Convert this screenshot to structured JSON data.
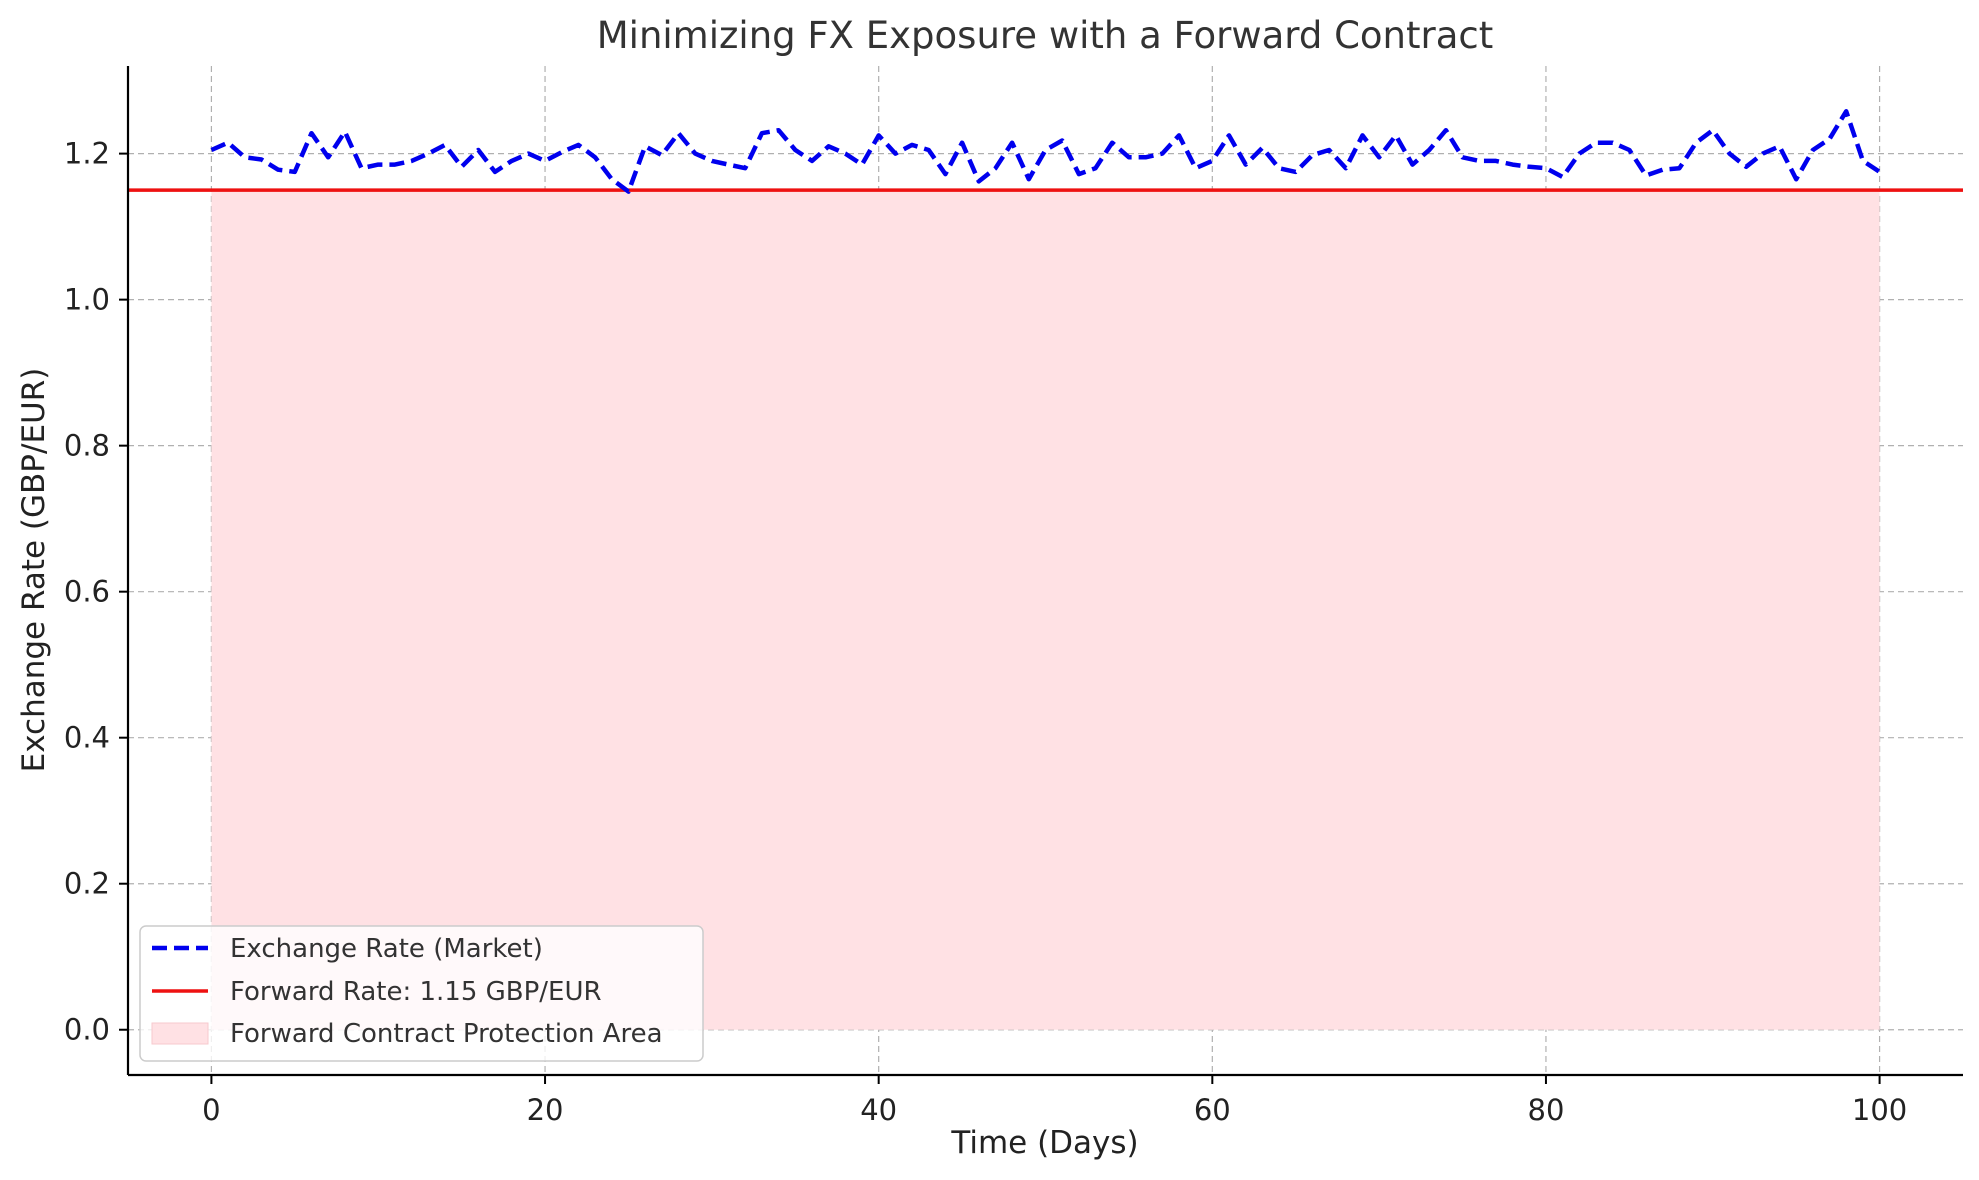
{
  "chart_data": {
    "type": "line",
    "title": "Minimizing FX Exposure with a Forward Contract",
    "xlabel": "Time (Days)",
    "ylabel": "Exchange Rate (GBP/EUR)",
    "xlim": [
      -5,
      105
    ],
    "ylim": [
      -0.062,
      1.32
    ],
    "xticks": [
      0,
      20,
      40,
      60,
      80,
      100
    ],
    "xtick_labels": [
      "0",
      "20",
      "40",
      "60",
      "80",
      "100"
    ],
    "yticks": [
      0.0,
      0.2,
      0.4,
      0.6,
      0.8,
      1.0,
      1.2
    ],
    "ytick_labels": [
      "0.0",
      "0.2",
      "0.4",
      "0.6",
      "0.8",
      "1.0",
      "1.2"
    ],
    "grid": true,
    "legend_position": "lower-left",
    "series": [
      {
        "name": "Exchange Rate (Market)",
        "style": "dashed",
        "color": "#0000ee",
        "x": [
          0,
          1,
          2,
          3,
          4,
          5,
          6,
          7,
          8,
          9,
          10,
          11,
          12,
          13,
          14,
          15,
          16,
          17,
          18,
          19,
          20,
          21,
          22,
          23,
          24,
          25,
          26,
          27,
          28,
          29,
          30,
          31,
          32,
          33,
          34,
          35,
          36,
          37,
          38,
          39,
          40,
          41,
          42,
          43,
          44,
          45,
          46,
          47,
          48,
          49,
          50,
          51,
          52,
          53,
          54,
          55,
          56,
          57,
          58,
          59,
          60,
          61,
          62,
          63,
          64,
          65,
          66,
          67,
          68,
          69,
          70,
          71,
          72,
          73,
          74,
          75,
          76,
          77,
          78,
          79,
          80,
          81,
          82,
          83,
          84,
          85,
          86,
          87,
          88,
          89,
          90,
          91,
          92,
          93,
          94,
          95,
          96,
          97,
          98,
          99,
          100
        ],
        "values": [
          1.205,
          1.215,
          1.195,
          1.192,
          1.178,
          1.175,
          1.228,
          1.195,
          1.23,
          1.18,
          1.185,
          1.185,
          1.19,
          1.2,
          1.212,
          1.182,
          1.205,
          1.175,
          1.19,
          1.2,
          1.19,
          1.202,
          1.212,
          1.195,
          1.165,
          1.148,
          1.21,
          1.198,
          1.228,
          1.2,
          1.19,
          1.185,
          1.18,
          1.228,
          1.232,
          1.205,
          1.19,
          1.21,
          1.2,
          1.185,
          1.225,
          1.2,
          1.212,
          1.205,
          1.172,
          1.215,
          1.162,
          1.18,
          1.215,
          1.165,
          1.205,
          1.218,
          1.172,
          1.18,
          1.215,
          1.195,
          1.195,
          1.2,
          1.225,
          1.18,
          1.19,
          1.225,
          1.185,
          1.208,
          1.18,
          1.175,
          1.198,
          1.205,
          1.18,
          1.225,
          1.195,
          1.225,
          1.185,
          1.205,
          1.232,
          1.195,
          1.19,
          1.19,
          1.185,
          1.182,
          1.18,
          1.168,
          1.2,
          1.215,
          1.215,
          1.205,
          1.17,
          1.178,
          1.18,
          1.215,
          1.232,
          1.2,
          1.182,
          1.2,
          1.21,
          1.165,
          1.205,
          1.22,
          1.258,
          1.19,
          1.175
        ]
      },
      {
        "name": "Forward Rate: 1.15 GBP/EUR",
        "style": "solid",
        "color": "#ee1111",
        "value": 1.15
      },
      {
        "name": "Forward Contract Protection Area",
        "style": "fill",
        "color": "#ffe1e4",
        "x_range": [
          0,
          100
        ],
        "y_range": [
          0,
          1.15
        ]
      }
    ]
  }
}
